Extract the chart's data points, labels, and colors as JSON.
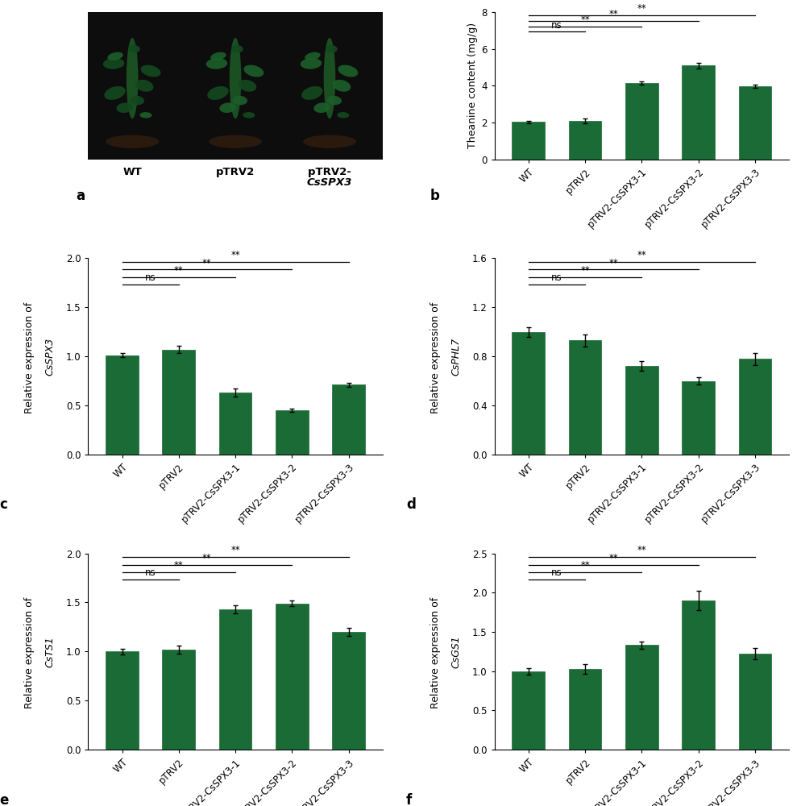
{
  "bar_color": "#1a6b35",
  "bg_color": "#ffffff",
  "b_values": [
    2.03,
    2.08,
    4.15,
    5.1,
    3.97
  ],
  "b_errors": [
    0.07,
    0.13,
    0.1,
    0.15,
    0.08
  ],
  "b_ylabel": "Theanine content (mg/g)",
  "b_ylim": [
    0,
    8
  ],
  "b_yticks": [
    0,
    2,
    4,
    6,
    8
  ],
  "b_sig": [
    [
      0,
      1,
      "ns"
    ],
    [
      0,
      2,
      "**"
    ],
    [
      0,
      3,
      "**"
    ],
    [
      0,
      4,
      "**"
    ]
  ],
  "c_values": [
    1.01,
    1.07,
    0.63,
    0.45,
    0.71
  ],
  "c_errors": [
    0.02,
    0.04,
    0.04,
    0.02,
    0.02
  ],
  "c_ylabel_prefix": "Relative expression of ",
  "c_ylabel_gene": "CsSPX3",
  "c_ylim": [
    0,
    2.0
  ],
  "c_yticks": [
    0.0,
    0.5,
    1.0,
    1.5,
    2.0
  ],
  "c_sig": [
    [
      0,
      1,
      "ns"
    ],
    [
      0,
      2,
      "**"
    ],
    [
      0,
      3,
      "**"
    ],
    [
      0,
      4,
      "**"
    ]
  ],
  "d_values": [
    1.0,
    0.93,
    0.72,
    0.6,
    0.78
  ],
  "d_errors": [
    0.04,
    0.05,
    0.04,
    0.03,
    0.05
  ],
  "d_ylabel_prefix": "Relative expression of ",
  "d_ylabel_gene": "CsPHL7",
  "d_ylim": [
    0,
    1.6
  ],
  "d_yticks": [
    0.0,
    0.4,
    0.8,
    1.2,
    1.6
  ],
  "d_sig": [
    [
      0,
      1,
      "ns"
    ],
    [
      0,
      2,
      "**"
    ],
    [
      0,
      3,
      "**"
    ],
    [
      0,
      4,
      "**"
    ]
  ],
  "e_values": [
    1.0,
    1.02,
    1.43,
    1.49,
    1.2
  ],
  "e_errors": [
    0.03,
    0.04,
    0.04,
    0.03,
    0.04
  ],
  "e_ylabel_prefix": "Relative expression of ",
  "e_ylabel_gene": "CsTS1",
  "e_ylim": [
    0,
    2.0
  ],
  "e_yticks": [
    0.0,
    0.5,
    1.0,
    1.5,
    2.0
  ],
  "e_sig": [
    [
      0,
      1,
      "ns"
    ],
    [
      0,
      2,
      "**"
    ],
    [
      0,
      3,
      "**"
    ],
    [
      0,
      4,
      "**"
    ]
  ],
  "f_values": [
    1.0,
    1.03,
    1.33,
    1.9,
    1.22
  ],
  "f_errors": [
    0.04,
    0.06,
    0.05,
    0.12,
    0.07
  ],
  "f_ylabel_prefix": "Relative expression of ",
  "f_ylabel_gene": "CsGS1",
  "f_ylim": [
    0,
    2.5
  ],
  "f_yticks": [
    0.0,
    0.5,
    1.0,
    1.5,
    2.0,
    2.5
  ],
  "f_sig": [
    [
      0,
      1,
      "ns"
    ],
    [
      0,
      2,
      "**"
    ],
    [
      0,
      3,
      "**"
    ],
    [
      0,
      4,
      "**"
    ]
  ],
  "categories": [
    "WT",
    "pTRV2",
    "pTRV2-CsSPX3-1",
    "pTRV2-CsSPX3-2",
    "pTRV2-CsSPX3-3"
  ]
}
